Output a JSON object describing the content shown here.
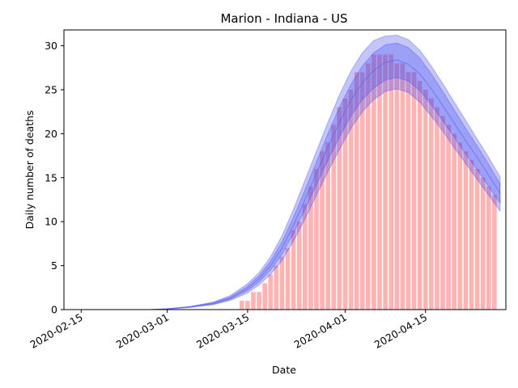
{
  "chart_data": {
    "type": "bar",
    "title": "Marion - Indiana - US",
    "xlabel": "Date",
    "ylabel": "Daily number of deaths",
    "x_start": "2020-02-12",
    "x_end": "2020-04-29",
    "ylim": [
      0,
      31.8
    ],
    "grid": false,
    "x_ticks": [
      "2020-02-15",
      "2020-03-01",
      "2020-03-15",
      "2020-04-01",
      "2020-04-15"
    ],
    "y_ticks": [
      0,
      5,
      10,
      15,
      20,
      25,
      30
    ],
    "colors": {
      "bars": "#ffb3b3",
      "band_outer": "#b0b3f7",
      "band_inner": "#9a9eee",
      "line": "#5a5ee0"
    },
    "series": [
      {
        "kind": "bar",
        "dates": [
          "2020-03-14",
          "2020-03-15",
          "2020-03-16",
          "2020-03-17",
          "2020-03-18",
          "2020-03-19",
          "2020-03-20",
          "2020-03-21",
          "2020-03-22",
          "2020-03-23",
          "2020-03-24",
          "2020-03-25",
          "2020-03-26",
          "2020-03-27",
          "2020-03-28",
          "2020-03-29",
          "2020-03-30",
          "2020-03-31",
          "2020-04-01",
          "2020-04-02",
          "2020-04-03",
          "2020-04-04",
          "2020-04-05",
          "2020-04-06",
          "2020-04-07",
          "2020-04-08",
          "2020-04-09",
          "2020-04-10",
          "2020-04-11",
          "2020-04-12",
          "2020-04-13",
          "2020-04-14",
          "2020-04-15",
          "2020-04-16",
          "2020-04-17",
          "2020-04-18",
          "2020-04-19",
          "2020-04-20",
          "2020-04-21",
          "2020-04-22",
          "2020-04-23",
          "2020-04-24",
          "2020-04-25",
          "2020-04-26",
          "2020-04-27"
        ],
        "values": [
          1,
          1,
          2,
          2,
          3,
          4,
          5,
          6,
          7,
          9,
          10,
          12,
          14,
          16,
          18,
          19,
          21,
          23,
          24,
          25,
          27,
          27,
          28,
          29,
          29,
          29,
          29,
          28,
          28,
          27,
          27,
          26,
          25,
          24,
          23,
          22,
          21,
          20,
          19,
          18,
          17,
          16,
          15,
          14,
          13
        ]
      },
      {
        "kind": "band",
        "x": [
          "2020-02-27",
          "2020-03-01",
          "2020-03-05",
          "2020-03-09",
          "2020-03-12",
          "2020-03-15",
          "2020-03-17",
          "2020-03-19",
          "2020-03-21",
          "2020-03-23",
          "2020-03-25",
          "2020-03-27",
          "2020-03-29",
          "2020-03-31",
          "2020-04-02",
          "2020-04-04",
          "2020-04-06",
          "2020-04-08",
          "2020-04-10",
          "2020-04-12",
          "2020-04-14",
          "2020-04-16",
          "2020-04-18",
          "2020-04-20",
          "2020-04-22",
          "2020-04-24",
          "2020-04-26",
          "2020-04-28"
        ],
        "mean": [
          0,
          0.08,
          0.3,
          0.7,
          1.3,
          2.4,
          3.5,
          5,
          7,
          9.6,
          12.5,
          15.5,
          18.5,
          21.3,
          23.8,
          25.8,
          27.2,
          28.1,
          28.4,
          27.9,
          26.8,
          25.1,
          23.2,
          21.2,
          19.2,
          17.3,
          15.3,
          13.2
        ],
        "lower_inner": [
          0,
          0.07,
          0.27,
          0.62,
          1.17,
          2.15,
          3.15,
          4.5,
          6.3,
          8.7,
          11.4,
          14.2,
          17,
          19.6,
          22,
          23.9,
          25.2,
          26.1,
          26.4,
          26,
          24.9,
          23.3,
          21.5,
          19.6,
          17.7,
          15.9,
          14,
          12.1
        ],
        "upper_inner": [
          0,
          0.09,
          0.33,
          0.78,
          1.45,
          2.65,
          3.85,
          5.5,
          7.7,
          10.5,
          13.6,
          16.8,
          20,
          23,
          25.6,
          27.7,
          29.2,
          30.1,
          30.3,
          29.8,
          28.6,
          26.8,
          24.8,
          22.7,
          20.6,
          18.6,
          16.5,
          14.3
        ],
        "lower_outer": [
          0,
          0.06,
          0.24,
          0.55,
          1.05,
          1.9,
          2.8,
          4,
          5.6,
          7.8,
          10.3,
          13,
          15.7,
          18.2,
          20.6,
          22.5,
          23.9,
          24.8,
          25.1,
          24.7,
          23.6,
          22,
          20.3,
          18.4,
          16.6,
          14.8,
          13,
          11.2
        ],
        "upper_outer": [
          0,
          0.1,
          0.36,
          0.85,
          1.6,
          2.95,
          4.2,
          6,
          8.4,
          11.4,
          14.7,
          18,
          21.3,
          24.4,
          27.1,
          29.2,
          30.6,
          31.1,
          31.2,
          30.7,
          29.5,
          27.7,
          25.7,
          23.6,
          21.5,
          19.4,
          17.3,
          15.1
        ]
      }
    ]
  }
}
